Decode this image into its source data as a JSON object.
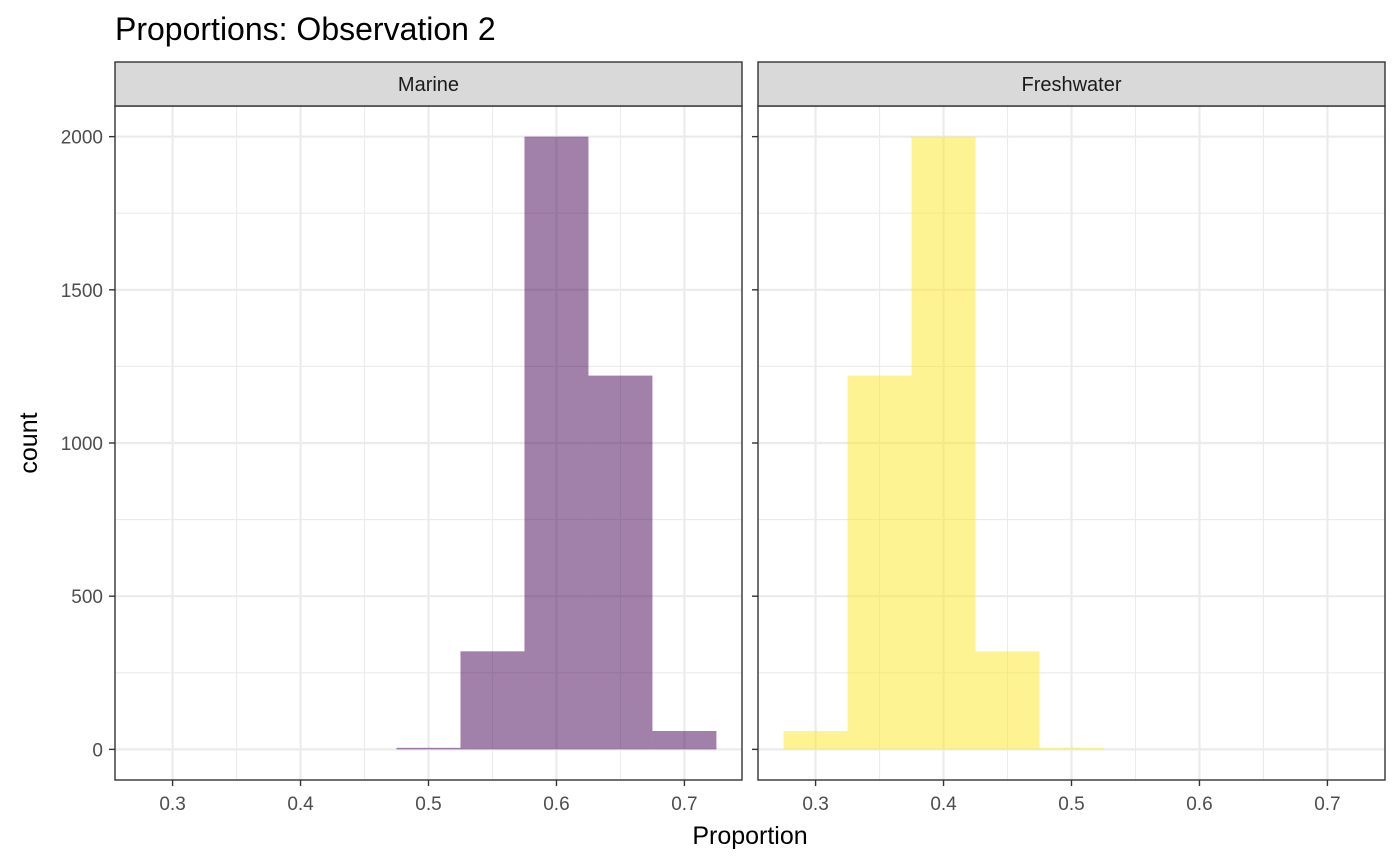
{
  "chart_data": {
    "type": "bar",
    "subtype": "faceted-histogram",
    "title": "Proportions: Observation 2",
    "xlabel": "Proportion",
    "ylabel": "count",
    "xlim": [
      0.255,
      0.745
    ],
    "ylim": [
      -100,
      2100
    ],
    "x_ticks": [
      0.3,
      0.4,
      0.5,
      0.6,
      0.7
    ],
    "x_tick_labels": [
      "0.3",
      "0.4",
      "0.5",
      "0.6",
      "0.7"
    ],
    "y_ticks": [
      0,
      500,
      1000,
      1500,
      2000
    ],
    "y_tick_labels": [
      "0",
      "500",
      "1000",
      "1500",
      "2000"
    ],
    "grid": true,
    "bin_width": 0.05,
    "panels": [
      {
        "name": "Marine",
        "color": "#440154",
        "opacity": 0.5,
        "bins": [
          {
            "x": 0.5,
            "count": 5
          },
          {
            "x": 0.55,
            "count": 320
          },
          {
            "x": 0.6,
            "count": 2000
          },
          {
            "x": 0.65,
            "count": 1220
          },
          {
            "x": 0.7,
            "count": 60
          }
        ]
      },
      {
        "name": "Freshwater",
        "color": "#FDE725",
        "opacity": 0.5,
        "bins": [
          {
            "x": 0.3,
            "count": 60
          },
          {
            "x": 0.35,
            "count": 1220
          },
          {
            "x": 0.4,
            "count": 2000
          },
          {
            "x": 0.45,
            "count": 320
          },
          {
            "x": 0.5,
            "count": 5
          }
        ]
      }
    ]
  }
}
